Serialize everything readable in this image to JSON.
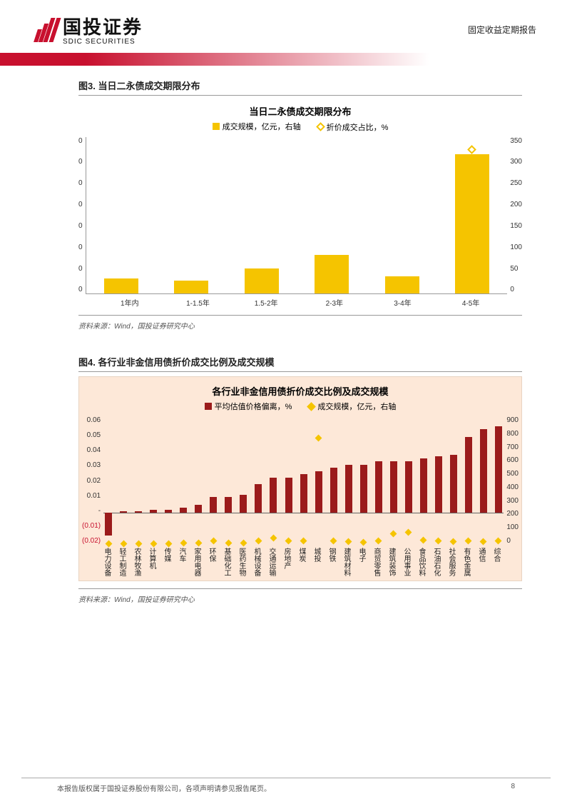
{
  "header": {
    "company_cn": "国投证券",
    "company_en": "SDIC SECURITIES",
    "report_type": "固定收益定期报告",
    "brand_color": "#c8102e"
  },
  "chart3": {
    "heading": "图3. 当日二永债成交期限分布",
    "title": "当日二永债成交期限分布",
    "legend_bar": "成交规模，亿元，右轴",
    "legend_marker": "折价成交占比，%",
    "bar_color": "#f5c400",
    "marker_color": "#f5c400",
    "right_axis": {
      "max": 350,
      "ticks": [
        "350",
        "300",
        "250",
        "200",
        "150",
        "100",
        "50",
        "0"
      ]
    },
    "left_axis": {
      "ticks": [
        "0",
        "0",
        "0",
        "0",
        "0",
        "0",
        "0",
        "0"
      ]
    },
    "categories": [
      "1年内",
      "1-1.5年",
      "1.5-2年",
      "2-3年",
      "3-4年",
      "4-5年"
    ],
    "values": [
      32,
      28,
      55,
      85,
      38,
      310
    ],
    "marker_points": [
      {
        "category_index": 5,
        "value": 320
      }
    ],
    "source": "资料来源：Wind，国投证券研究中心"
  },
  "chart4": {
    "heading": "图4. 各行业非金信用债折价成交比例及成交规模",
    "title": "各行业非金信用债折价成交比例及成交规模",
    "legend_bar": "平均估值价格偏离，%",
    "legend_marker": "成交规模，亿元，右轴",
    "bar_color": "#9b1b1b",
    "marker_color": "#f5c400",
    "bg_color": "#fde8d8",
    "left_axis": {
      "min": -0.02,
      "max": 0.06,
      "ticks": [
        "0.06",
        "0.05",
        "0.04",
        "0.03",
        "0.02",
        "0.01",
        "-",
        "(0.01)",
        "(0.02)"
      ],
      "neg_color": "#c8102e"
    },
    "right_axis": {
      "max": 900,
      "ticks": [
        "900",
        "800",
        "700",
        "600",
        "500",
        "400",
        "300",
        "200",
        "100",
        "0"
      ]
    },
    "categories": [
      "电力设备",
      "轻工制造",
      "农林牧渔",
      "计算机",
      "传媒",
      "汽车",
      "家用电器",
      "环保",
      "基础化工",
      "医药生物",
      "机械设备",
      "交通运输",
      "房地产",
      "煤炭",
      "城投",
      "钢铁",
      "建筑材料",
      "电子",
      "商贸零售",
      "建筑装饰",
      "公用事业",
      "食品饮料",
      "石油石化",
      "社会服务",
      "有色金属",
      "通信",
      "综合"
    ],
    "deviation": [
      -0.014,
      0.001,
      0.001,
      0.002,
      0.002,
      0.003,
      0.005,
      0.01,
      0.01,
      0.011,
      0.018,
      0.022,
      0.022,
      0.024,
      0.026,
      0.028,
      0.03,
      0.03,
      0.032,
      0.032,
      0.032,
      0.034,
      0.035,
      0.036,
      0.047,
      0.052,
      0.054
    ],
    "volume": [
      10,
      10,
      8,
      8,
      10,
      15,
      12,
      30,
      12,
      15,
      30,
      50,
      30,
      30,
      750,
      30,
      25,
      20,
      30,
      80,
      90,
      35,
      30,
      25,
      30,
      25,
      30
    ],
    "source": "资料来源：Wind，国投证券研究中心"
  },
  "footer": {
    "copyright": "本报告版权属于国投证券股份有限公司，各项声明请参见报告尾页。",
    "page": "8"
  }
}
